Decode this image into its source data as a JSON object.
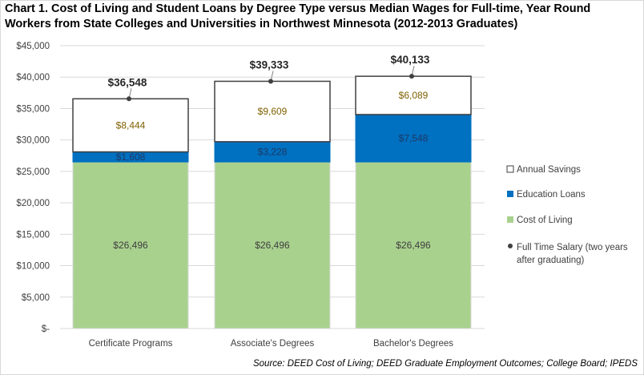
{
  "title": "Chart 1. Cost of Living and Student Loans by Degree Type versus Median Wages for Full-time, Year Round Workers from State Colleges and Universities in Northwest Minnesota (2012-2013 Graduates)",
  "source": "Source: DEED Cost of Living; DEED Graduate Employment Outcomes; College Board; IPEDS",
  "colors": {
    "cost_of_living": "#a9d18e",
    "education_loans": "#0070c0",
    "annual_savings": "#ffffff",
    "savings_label": "#7f6000",
    "loans_label": "#1f3864",
    "cost_label": "#404040",
    "salary_marker": "#404040",
    "gridline": "#d9d9d9"
  },
  "chart_data": {
    "type": "bar",
    "stacked": true,
    "categories": [
      "Certificate Programs",
      "Associate's Degrees",
      "Bachelor's Degrees"
    ],
    "series": [
      {
        "name": "Cost of Living",
        "values": [
          26496,
          26496,
          26496
        ],
        "labels": [
          "$26,496",
          "$26,496",
          "$26,496"
        ]
      },
      {
        "name": "Education Loans",
        "values": [
          1608,
          3228,
          7548
        ],
        "labels": [
          "$1,608",
          "$3,228",
          "$7,548"
        ]
      },
      {
        "name": "Annual Savings",
        "values": [
          8444,
          9609,
          6089
        ],
        "labels": [
          "$8,444",
          "$9,609",
          "$6,089"
        ]
      }
    ],
    "salary": {
      "name": "Full Time Salary (two years after graduating)",
      "values": [
        36548,
        39333,
        40133
      ],
      "labels": [
        "$36,548",
        "$39,333",
        "$40,133"
      ]
    },
    "ylim": [
      0,
      45000
    ],
    "yticks": [
      "$-",
      "$5,000",
      "$10,000",
      "$15,000",
      "$20,000",
      "$25,000",
      "$30,000",
      "$35,000",
      "$40,000",
      "$45,000"
    ],
    "grid": true,
    "legend": {
      "position": "right",
      "entries": [
        "Annual Savings",
        "Education Loans",
        "Cost of Living",
        "Full Time Salary (two years",
        "after graduating)"
      ]
    }
  }
}
